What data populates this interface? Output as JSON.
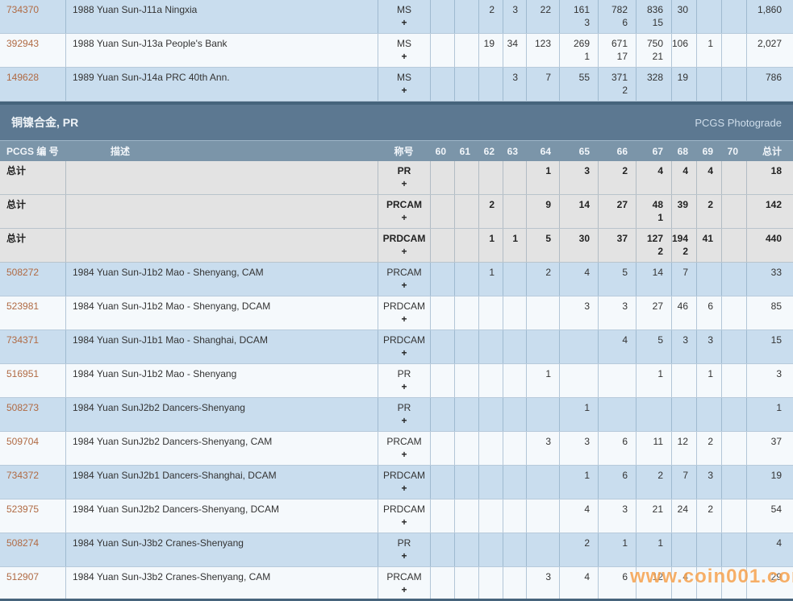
{
  "section": {
    "title": "铜镍合金, PR",
    "link": "PCGS Photograde"
  },
  "table": {
    "id_header": "PCGS 编 号",
    "desc_header": "描述",
    "desig_header": "称号",
    "grade_headers": [
      "60",
      "61",
      "62",
      "63",
      "64",
      "65",
      "66",
      "67",
      "68",
      "69",
      "70"
    ],
    "total_header": "总计",
    "totals_label": "总计",
    "plus_symbol": "+"
  },
  "colors": {
    "section_bar": "#5c7891",
    "column_header": "#7b95a9",
    "dark_divider": "#46647c",
    "row_blue": "#c9ddee",
    "row_white": "#f5f9fc",
    "row_gray": "#e3e3e3",
    "link": "#b06a43",
    "watermark_orange": "#f5983c"
  },
  "watermark": "www.coin001.com",
  "top_rows": [
    {
      "id": "734370",
      "desc": "1988 Yuan Sun-J11a Ningxia",
      "desig": "MS",
      "shade": "blue",
      "grades": {
        "62": [
          "2",
          ""
        ],
        "63": [
          "3",
          ""
        ],
        "64": [
          "22",
          ""
        ],
        "65": [
          "161",
          "3"
        ],
        "66": [
          "782",
          "6"
        ],
        "67": [
          "836",
          "15"
        ],
        "68": [
          "30",
          ""
        ]
      },
      "total": "1,860"
    },
    {
      "id": "392943",
      "desc": "1988 Yuan Sun-J13a People's Bank",
      "desig": "MS",
      "shade": "white",
      "grades": {
        "62": [
          "19",
          ""
        ],
        "63": [
          "34",
          ""
        ],
        "64": [
          "123",
          ""
        ],
        "65": [
          "269",
          "1"
        ],
        "66": [
          "671",
          "17"
        ],
        "67": [
          "750",
          "21"
        ],
        "68": [
          "106",
          ""
        ],
        "69": [
          "1",
          ""
        ]
      },
      "total": "2,027"
    },
    {
      "id": "149628",
      "desc": "1989 Yuan Sun-J14a PRC 40th Ann.",
      "desig": "MS",
      "shade": "blue",
      "grades": {
        "63": [
          "3",
          ""
        ],
        "64": [
          "7",
          ""
        ],
        "65": [
          "55",
          ""
        ],
        "66": [
          "371",
          "2"
        ],
        "67": [
          "328",
          ""
        ],
        "68": [
          "19",
          ""
        ]
      },
      "total": "786"
    }
  ],
  "total_rows": [
    {
      "desig": "PR",
      "grades": {
        "64": [
          "1",
          ""
        ],
        "65": [
          "3",
          ""
        ],
        "66": [
          "2",
          ""
        ],
        "67": [
          "4",
          ""
        ],
        "68": [
          "4",
          ""
        ],
        "69": [
          "4",
          ""
        ]
      },
      "total": "18"
    },
    {
      "desig": "PRCAM",
      "grades": {
        "62": [
          "2",
          ""
        ],
        "64": [
          "9",
          ""
        ],
        "65": [
          "14",
          ""
        ],
        "66": [
          "27",
          ""
        ],
        "67": [
          "48",
          "1"
        ],
        "68": [
          "39",
          ""
        ],
        "69": [
          "2",
          ""
        ]
      },
      "total": "142"
    },
    {
      "desig": "PRDCAM",
      "grades": {
        "62": [
          "1",
          ""
        ],
        "63": [
          "1",
          ""
        ],
        "64": [
          "5",
          ""
        ],
        "65": [
          "30",
          ""
        ],
        "66": [
          "37",
          ""
        ],
        "67": [
          "127",
          "2"
        ],
        "68": [
          "194",
          "2"
        ],
        "69": [
          "41",
          ""
        ]
      },
      "total": "440"
    }
  ],
  "detail_rows": [
    {
      "id": "508272",
      "desc": "1984 Yuan Sun-J1b2 Mao - Shenyang, CAM",
      "desig": "PRCAM",
      "shade": "blue",
      "grades": {
        "62": [
          "1",
          ""
        ],
        "64": [
          "2",
          ""
        ],
        "65": [
          "4",
          ""
        ],
        "66": [
          "5",
          ""
        ],
        "67": [
          "14",
          ""
        ],
        "68": [
          "7",
          ""
        ]
      },
      "total": "33"
    },
    {
      "id": "523981",
      "desc": "1984 Yuan Sun-J1b2 Mao - Shenyang, DCAM",
      "desig": "PRDCAM",
      "shade": "white",
      "grades": {
        "65": [
          "3",
          ""
        ],
        "66": [
          "3",
          ""
        ],
        "67": [
          "27",
          ""
        ],
        "68": [
          "46",
          ""
        ],
        "69": [
          "6",
          ""
        ]
      },
      "total": "85"
    },
    {
      "id": "734371",
      "desc": "1984 Yuan Sun-J1b1 Mao - Shanghai, DCAM",
      "desig": "PRDCAM",
      "shade": "blue",
      "grades": {
        "66": [
          "4",
          ""
        ],
        "67": [
          "5",
          ""
        ],
        "68": [
          "3",
          ""
        ],
        "69": [
          "3",
          ""
        ]
      },
      "total": "15"
    },
    {
      "id": "516951",
      "desc": "1984 Yuan Sun-J1b2 Mao - Shenyang",
      "desig": "PR",
      "shade": "white",
      "grades": {
        "64": [
          "1",
          ""
        ],
        "67": [
          "1",
          ""
        ],
        "69": [
          "1",
          ""
        ]
      },
      "total": "3"
    },
    {
      "id": "508273",
      "desc": "1984 Yuan SunJ2b2 Dancers-Shenyang",
      "desig": "PR",
      "shade": "blue",
      "grades": {
        "65": [
          "1",
          ""
        ]
      },
      "total": "1"
    },
    {
      "id": "509704",
      "desc": "1984 Yuan SunJ2b2 Dancers-Shenyang, CAM",
      "desig": "PRCAM",
      "shade": "white",
      "grades": {
        "64": [
          "3",
          ""
        ],
        "65": [
          "3",
          ""
        ],
        "66": [
          "6",
          ""
        ],
        "67": [
          "11",
          ""
        ],
        "68": [
          "12",
          ""
        ],
        "69": [
          "2",
          ""
        ]
      },
      "total": "37"
    },
    {
      "id": "734372",
      "desc": "1984 Yuan SunJ2b1 Dancers-Shanghai, DCAM",
      "desig": "PRDCAM",
      "shade": "blue",
      "grades": {
        "65": [
          "1",
          ""
        ],
        "66": [
          "6",
          ""
        ],
        "67": [
          "2",
          ""
        ],
        "68": [
          "7",
          ""
        ],
        "69": [
          "3",
          ""
        ]
      },
      "total": "19"
    },
    {
      "id": "523975",
      "desc": "1984 Yuan SunJ2b2 Dancers-Shenyang, DCAM",
      "desig": "PRDCAM",
      "shade": "white",
      "grades": {
        "65": [
          "4",
          ""
        ],
        "66": [
          "3",
          ""
        ],
        "67": [
          "21",
          ""
        ],
        "68": [
          "24",
          ""
        ],
        "69": [
          "2",
          ""
        ]
      },
      "total": "54"
    },
    {
      "id": "508274",
      "desc": "1984 Yuan Sun-J3b2 Cranes-Shenyang",
      "desig": "PR",
      "shade": "blue",
      "grades": {
        "65": [
          "2",
          ""
        ],
        "66": [
          "1",
          ""
        ],
        "67": [
          "1",
          ""
        ]
      },
      "total": "4"
    },
    {
      "id": "512907",
      "desc": "1984 Yuan Sun-J3b2 Cranes-Shenyang, CAM",
      "desig": "PRCAM",
      "shade": "white",
      "grades": {
        "64": [
          "3",
          ""
        ],
        "65": [
          "4",
          ""
        ],
        "66": [
          "6",
          ""
        ],
        "67": [
          "12",
          ""
        ],
        "68": [
          "4",
          ""
        ]
      },
      "total": "29"
    }
  ]
}
